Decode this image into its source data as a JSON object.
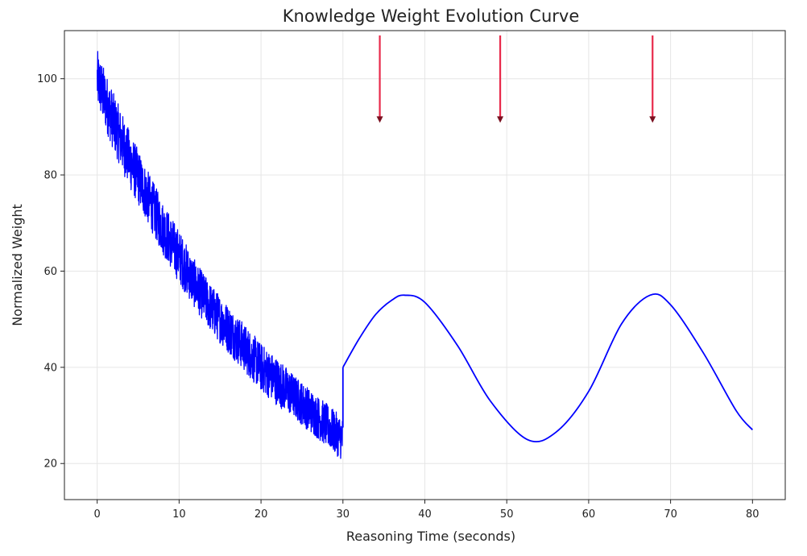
{
  "chart_data": {
    "type": "line",
    "title": "Knowledge Weight Evolution Curve",
    "xlabel": "Reasoning Time (seconds)",
    "ylabel": "Normalized Weight",
    "xlim": [
      -4,
      84
    ],
    "ylim": [
      12.5,
      110
    ],
    "xticks": [
      0,
      10,
      20,
      30,
      40,
      50,
      60,
      70,
      80
    ],
    "yticks": [
      20,
      40,
      60,
      80,
      100
    ],
    "grid": true,
    "series": [
      {
        "color": "#0000ff",
        "segments": [
          {
            "style": "noisy",
            "x": [
              0,
              2,
              4,
              6,
              8,
              10,
              12,
              14,
              16,
              18,
              20,
              22,
              24,
              26,
              28,
              30
            ],
            "y": [
              100,
              91,
              83,
              76,
              69,
              63,
              57,
              52,
              48,
              44,
              40,
              37,
              34,
              31,
              28,
              25
            ],
            "noise_amplitude": [
              6,
              6,
              6,
              5.5,
              5.5,
              5.5,
              5,
              5,
              5,
              5,
              5,
              5,
              4.5,
              4.5,
              4.5,
              4.5
            ]
          },
          {
            "style": "smooth",
            "x": [
              30,
              32,
              34,
              36,
              37.5,
              40,
              44,
              48,
              52.5,
              56,
              60,
              64,
              67.5,
              70,
              74,
              78,
              80
            ],
            "y": [
              40,
              46,
              51,
              54,
              55,
              53.5,
              44.5,
              33,
              25,
              26.5,
              35,
              49,
              55,
              53,
              43,
              31,
              27
            ]
          }
        ]
      }
    ],
    "annotations": [
      {
        "type": "arrow",
        "x": 34.5,
        "y_start": 109,
        "y_end": 91,
        "color": "#e8294a"
      },
      {
        "type": "arrow",
        "x": 49.2,
        "y_start": 109,
        "y_end": 91,
        "color": "#e8294a"
      },
      {
        "type": "arrow",
        "x": 67.8,
        "y_start": 109,
        "y_end": 91,
        "color": "#e8294a"
      }
    ]
  }
}
